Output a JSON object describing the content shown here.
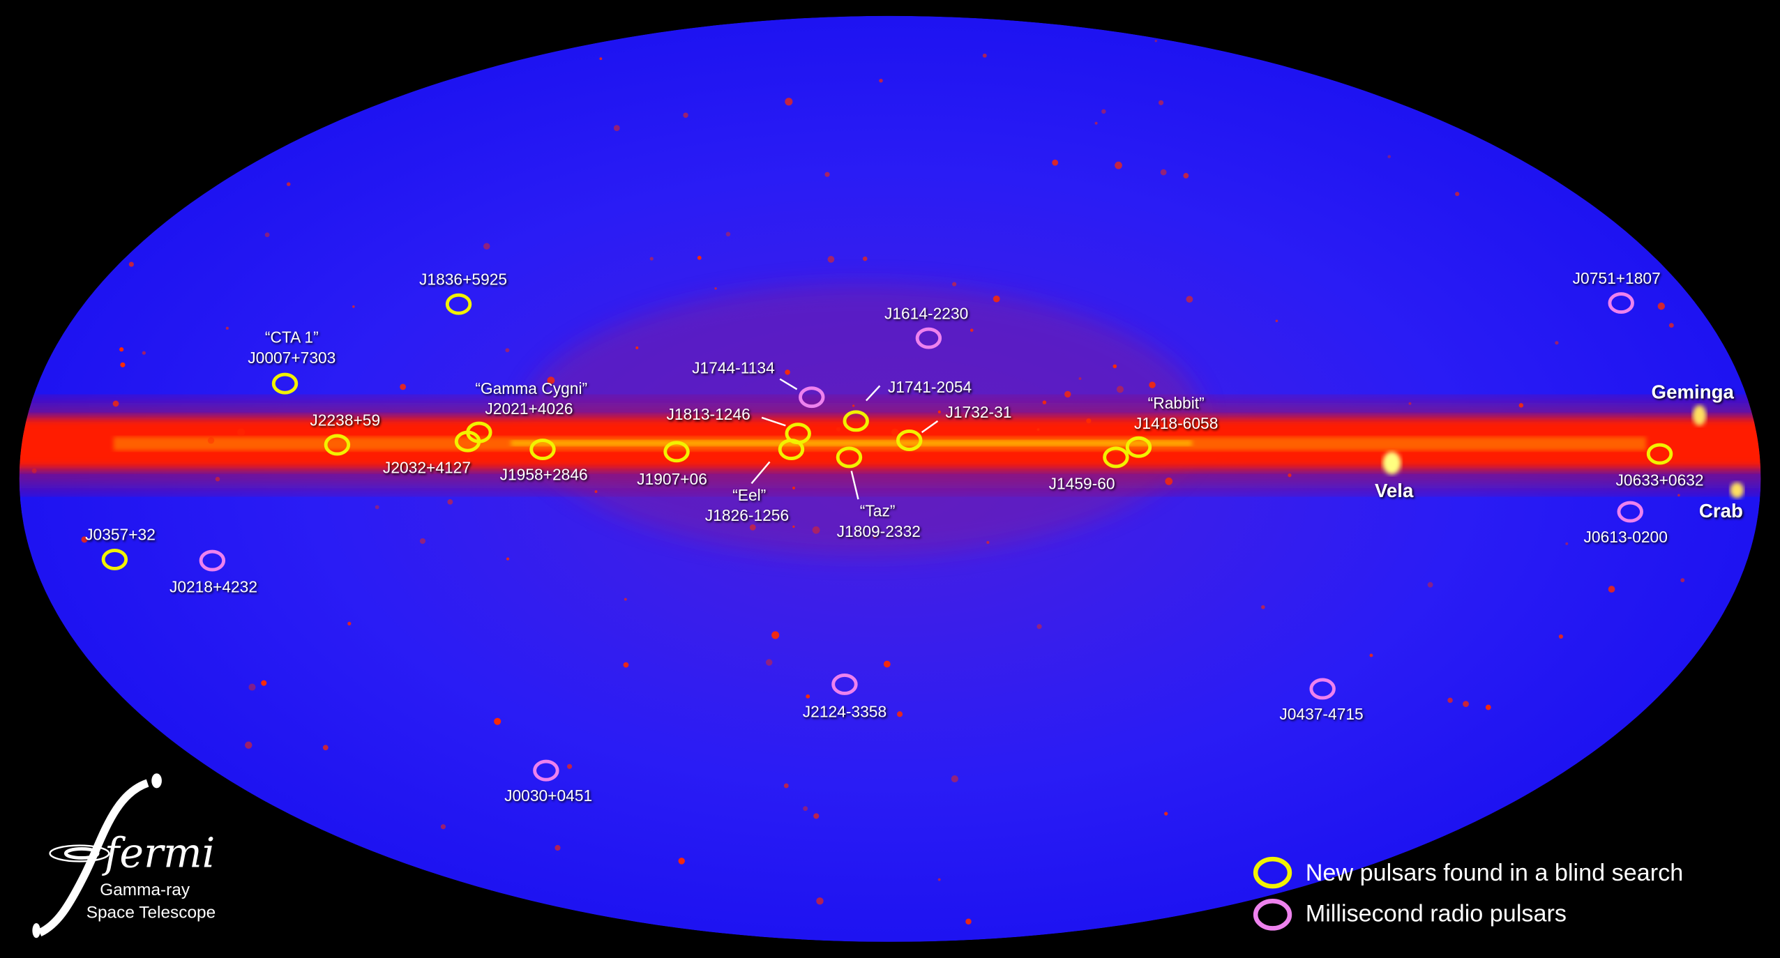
{
  "labels": {
    "j1836": "J1836+5925",
    "cta1_name": "“CTA 1”",
    "j0007": "J0007+7303",
    "gcyg_name": "“Gamma Cygni”",
    "j2021": "J2021+4026",
    "j2238": "J2238+59",
    "j2032": "J2032+4127",
    "j1958": "J1958+2846",
    "j1744": "J1744-1134",
    "j1813": "J1813-1246",
    "j1907": "J1907+06",
    "eel_name": "“Eel”",
    "j1826": "J1826-1256",
    "j1741": "J1741-2054",
    "j1732": "J1732-31",
    "taz_name": "“Taz”",
    "j1809": "J1809-2332",
    "j1614": "J1614-2230",
    "rabbit_name": "“Rabbit”",
    "j1418": "J1418-6058",
    "j1459": "J1459-60",
    "vela": "Vela",
    "geminga": "Geminga",
    "j0633": "J0633+0632",
    "crab": "Crab",
    "j0751": "J0751+1807",
    "j0613": "J0613-0200",
    "j0357": "J0357+32",
    "j0218": "J0218+4232",
    "j2124": "J2124-3358",
    "j0437": "J0437-4715",
    "j0030": "J0030+0451"
  },
  "legend": {
    "blind": "New pulsars found in a blind search",
    "msp": "Millisecond radio pulsars"
  },
  "logo": {
    "name": "fermi",
    "line1": "Gamma-ray",
    "line2": "Space Telescope"
  },
  "colors": {
    "blind_search": "#f2f200",
    "millisecond": "#ee82ee",
    "sky": "#2a1cf0",
    "galactic_plane": "#ff1a00"
  }
}
